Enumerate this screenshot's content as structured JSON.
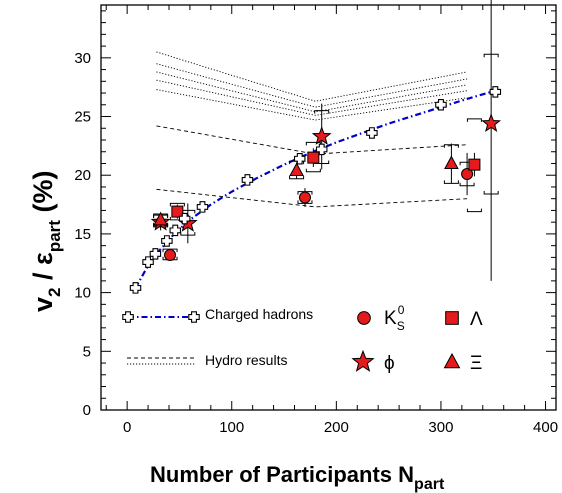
{
  "chart_data": {
    "type": "scatter",
    "xlabel": {
      "main": "Number of Participants N",
      "sub": "part"
    },
    "ylabel": {
      "v": "v",
      "two": "2",
      "slash": " / ",
      "eps": "ε",
      "sub": "part",
      "unit": " (%)"
    },
    "xlim": [
      -25,
      410
    ],
    "ylim": [
      0,
      34.5
    ],
    "xticks": [
      0,
      100,
      200,
      300,
      400
    ],
    "yticks": [
      0,
      5,
      10,
      15,
      20,
      25,
      30
    ],
    "grid": false,
    "legend": {
      "charged": "Charged hadrons",
      "hydro": "Hydro results",
      "k0s_base": "K",
      "k0s_sub": "S",
      "k0s_sup": "0",
      "lambda": "Λ",
      "phi": "ϕ",
      "xi": "Ξ"
    },
    "colors": {
      "charged": "#0000cc",
      "strange": "#e41a1c",
      "outline": "#000000"
    },
    "charged_hadrons": {
      "x": [
        8,
        20,
        27,
        38,
        46,
        55,
        72,
        115,
        165,
        186,
        234,
        300,
        352
      ],
      "y": [
        10.4,
        12.6,
        13.3,
        14.4,
        15.3,
        16.3,
        17.3,
        19.6,
        21.4,
        22.2,
        23.6,
        26.0,
        27.1
      ],
      "fit": {
        "x": [
          8,
          20,
          30,
          45,
          60,
          80,
          100,
          125,
          150,
          175,
          200,
          225,
          250,
          275,
          300,
          325,
          352
        ],
        "y": [
          10.4,
          12.3,
          13.5,
          15.0,
          16.2,
          17.5,
          18.6,
          19.8,
          20.9,
          21.9,
          22.8,
          23.6,
          24.4,
          25.1,
          25.8,
          26.5,
          27.2
        ]
      }
    },
    "series": [
      {
        "name": "K_S^0",
        "marker": "circle",
        "x": [
          41,
          170,
          325
        ],
        "y": [
          13.2,
          18.1,
          20.1
        ],
        "yerr": [
          0.5,
          0.8,
          1.8
        ],
        "sys": [
          {
            "lo": 12.8,
            "hi": 13.7
          },
          {
            "lo": 17.6,
            "hi": 18.6
          },
          {
            "lo": 19.1,
            "hi": 21.1
          }
        ]
      },
      {
        "name": "Lambda",
        "marker": "square",
        "x": [
          48,
          178,
          332
        ],
        "y": [
          16.9,
          21.5,
          20.9
        ],
        "yerr": [
          0.6,
          0.8,
          1.0
        ],
        "sys": [
          {
            "lo": 16.2,
            "hi": 17.6
          },
          {
            "lo": 20.3,
            "hi": 22.8
          },
          {
            "lo": 16.9,
            "hi": 24.8
          }
        ]
      },
      {
        "name": "phi",
        "marker": "star",
        "x": [
          32,
          58,
          186,
          348
        ],
        "y": [
          16.0,
          15.9,
          23.3,
          24.4
        ],
        "yerr": [
          0.7,
          1.7,
          2.8,
          13.4
        ],
        "sys": [
          {
            "lo": 15.6,
            "hi": 16.6
          },
          {
            "lo": 14.9,
            "hi": 17.0
          },
          {
            "lo": 21.0,
            "hi": 25.5
          },
          {
            "lo": 18.4,
            "hi": 30.3
          }
        ]
      },
      {
        "name": "Xi",
        "marker": "triangle",
        "x": [
          32,
          162,
          310
        ],
        "y": [
          16.2,
          20.4,
          21.0
        ],
        "yerr": [
          0.6,
          0.7,
          1.7
        ],
        "sys": [
          {
            "lo": 15.7,
            "hi": 16.7
          },
          {
            "lo": 19.7,
            "hi": 21.2
          },
          {
            "lo": 19.3,
            "hi": 22.6
          }
        ]
      }
    ],
    "hydro_dashed": [
      {
        "x": [
          28,
          180,
          325
        ],
        "y": [
          24.2,
          21.8,
          22.6
        ]
      },
      {
        "x": [
          28,
          180,
          325
        ],
        "y": [
          18.8,
          17.3,
          18.0
        ]
      }
    ],
    "hydro_dotted": [
      {
        "x": [
          28,
          180,
          325
        ],
        "y": [
          30.5,
          26.3,
          28.8
        ]
      },
      {
        "x": [
          28,
          180,
          325
        ],
        "y": [
          29.5,
          25.8,
          28.2
        ]
      },
      {
        "x": [
          28,
          180,
          325
        ],
        "y": [
          28.8,
          25.4,
          27.7
        ]
      },
      {
        "x": [
          28,
          180,
          325
        ],
        "y": [
          28.1,
          25.1,
          27.2
        ]
      },
      {
        "x": [
          28,
          180,
          325
        ],
        "y": [
          27.3,
          24.7,
          26.6
        ]
      }
    ]
  }
}
